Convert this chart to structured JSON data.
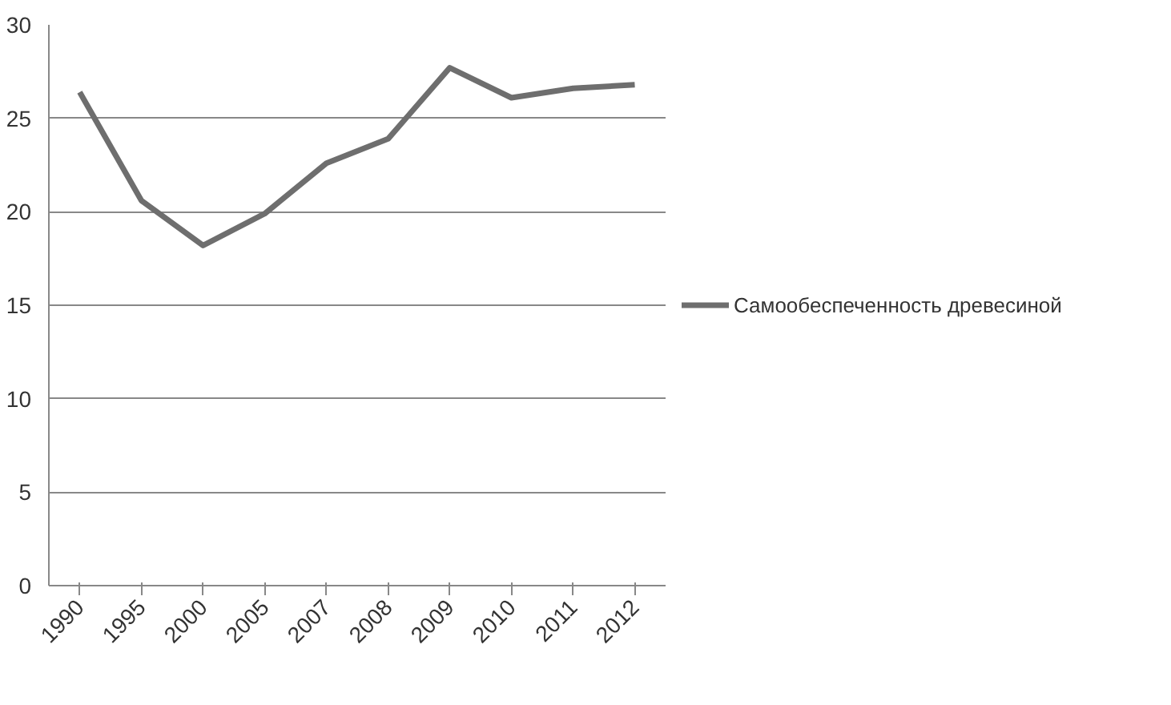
{
  "chart_data": {
    "type": "line",
    "categories": [
      "1990",
      "1995",
      "2000",
      "2005",
      "2007",
      "2008",
      "2009",
      "2010",
      "2011",
      "2012"
    ],
    "series": [
      {
        "name": "Самообеспеченность древесиной",
        "color": "#6e6e6e",
        "values": [
          26.4,
          20.6,
          18.2,
          19.9,
          22.6,
          23.9,
          27.7,
          26.1,
          26.6,
          26.8
        ]
      }
    ],
    "ylim": [
      0,
      30
    ],
    "yticks": [
      0,
      5,
      10,
      15,
      20,
      25,
      30
    ],
    "grid": "y",
    "legend": "right",
    "line_style": "solid",
    "marker": "none"
  }
}
